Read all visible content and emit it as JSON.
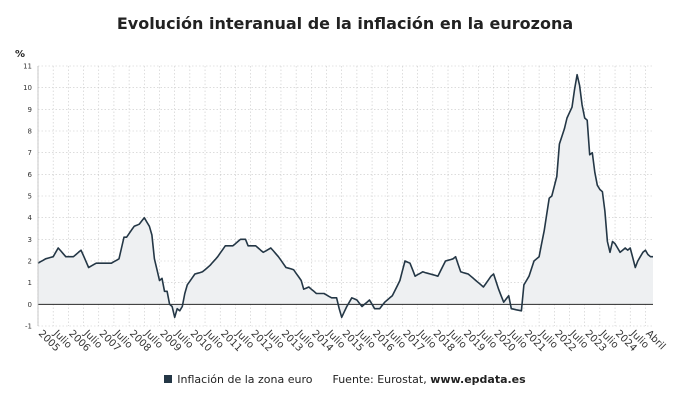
{
  "chart_data": {
    "type": "area",
    "title": "Evolución interanual de la inflación en la eurozona",
    "ylabel": "%",
    "ylim": [
      -1,
      11
    ],
    "yticks": [
      -1,
      0,
      1,
      2,
      3,
      4,
      5,
      6,
      7,
      8,
      9,
      10,
      11
    ],
    "grid": true,
    "xtick_labels": [
      "2005",
      "Julio",
      "2006",
      "Julio",
      "2007",
      "Julio",
      "2008",
      "Julio",
      "2009",
      "Julio",
      "2010",
      "Julio",
      "2011",
      "Julio",
      "2012",
      "Julio",
      "2013",
      "Julio",
      "2014",
      "Julio",
      "2015",
      "Julio",
      "2016",
      "Julio",
      "2017",
      "Julio",
      "2018",
      "Julio",
      "2019",
      "Julio",
      "2020",
      "Julio",
      "2021",
      "Julio",
      "2022",
      "Julio",
      "2023",
      "Julio",
      "2024",
      "Julio",
      "Abril"
    ],
    "series": [
      {
        "name": "Inflación de la zona euro",
        "color": "#243746",
        "fill": "#eef0f2",
        "x_start": "2005-01",
        "x_end": "2025-04",
        "anchors": [
          [
            "2005-01",
            1.9
          ],
          [
            "2005-04",
            2.1
          ],
          [
            "2005-07",
            2.2
          ],
          [
            "2005-09",
            2.6
          ],
          [
            "2005-12",
            2.2
          ],
          [
            "2006-03",
            2.2
          ],
          [
            "2006-06",
            2.5
          ],
          [
            "2006-09",
            1.7
          ],
          [
            "2006-12",
            1.9
          ],
          [
            "2007-03",
            1.9
          ],
          [
            "2007-06",
            1.9
          ],
          [
            "2007-09",
            2.1
          ],
          [
            "2007-11",
            3.1
          ],
          [
            "2007-12",
            3.1
          ],
          [
            "2008-03",
            3.6
          ],
          [
            "2008-05",
            3.7
          ],
          [
            "2008-07",
            4.0
          ],
          [
            "2008-09",
            3.6
          ],
          [
            "2008-10",
            3.2
          ],
          [
            "2008-11",
            2.1
          ],
          [
            "2008-12",
            1.6
          ],
          [
            "2009-01",
            1.1
          ],
          [
            "2009-02",
            1.2
          ],
          [
            "2009-03",
            0.6
          ],
          [
            "2009-04",
            0.6
          ],
          [
            "2009-05",
            0.0
          ],
          [
            "2009-06",
            -0.1
          ],
          [
            "2009-07",
            -0.6
          ],
          [
            "2009-08",
            -0.2
          ],
          [
            "2009-09",
            -0.3
          ],
          [
            "2009-10",
            -0.1
          ],
          [
            "2009-11",
            0.5
          ],
          [
            "2009-12",
            0.9
          ],
          [
            "2010-03",
            1.4
          ],
          [
            "2010-06",
            1.5
          ],
          [
            "2010-09",
            1.8
          ],
          [
            "2010-12",
            2.2
          ],
          [
            "2011-03",
            2.7
          ],
          [
            "2011-06",
            2.7
          ],
          [
            "2011-09",
            3.0
          ],
          [
            "2011-11",
            3.0
          ],
          [
            "2011-12",
            2.7
          ],
          [
            "2012-03",
            2.7
          ],
          [
            "2012-06",
            2.4
          ],
          [
            "2012-09",
            2.6
          ],
          [
            "2012-12",
            2.2
          ],
          [
            "2013-03",
            1.7
          ],
          [
            "2013-06",
            1.6
          ],
          [
            "2013-09",
            1.1
          ],
          [
            "2013-10",
            0.7
          ],
          [
            "2013-12",
            0.8
          ],
          [
            "2014-03",
            0.5
          ],
          [
            "2014-06",
            0.5
          ],
          [
            "2014-09",
            0.3
          ],
          [
            "2014-11",
            0.3
          ],
          [
            "2014-12",
            -0.2
          ],
          [
            "2015-01",
            -0.6
          ],
          [
            "2015-03",
            -0.1
          ],
          [
            "2015-05",
            0.3
          ],
          [
            "2015-07",
            0.2
          ],
          [
            "2015-09",
            -0.1
          ],
          [
            "2015-12",
            0.2
          ],
          [
            "2016-02",
            -0.2
          ],
          [
            "2016-04",
            -0.2
          ],
          [
            "2016-06",
            0.1
          ],
          [
            "2016-09",
            0.4
          ],
          [
            "2016-12",
            1.1
          ],
          [
            "2017-02",
            2.0
          ],
          [
            "2017-04",
            1.9
          ],
          [
            "2017-06",
            1.3
          ],
          [
            "2017-09",
            1.5
          ],
          [
            "2017-12",
            1.4
          ],
          [
            "2018-03",
            1.3
          ],
          [
            "2018-06",
            2.0
          ],
          [
            "2018-09",
            2.1
          ],
          [
            "2018-10",
            2.2
          ],
          [
            "2018-12",
            1.5
          ],
          [
            "2019-03",
            1.4
          ],
          [
            "2019-05",
            1.2
          ],
          [
            "2019-07",
            1.0
          ],
          [
            "2019-09",
            0.8
          ],
          [
            "2019-12",
            1.3
          ],
          [
            "2020-01",
            1.4
          ],
          [
            "2020-03",
            0.7
          ],
          [
            "2020-05",
            0.1
          ],
          [
            "2020-07",
            0.4
          ],
          [
            "2020-08",
            -0.2
          ],
          [
            "2020-12",
            -0.3
          ],
          [
            "2021-01",
            0.9
          ],
          [
            "2021-03",
            1.3
          ],
          [
            "2021-05",
            2.0
          ],
          [
            "2021-07",
            2.2
          ],
          [
            "2021-09",
            3.4
          ],
          [
            "2021-11",
            4.9
          ],
          [
            "2021-12",
            5.0
          ],
          [
            "2022-02",
            5.9
          ],
          [
            "2022-03",
            7.4
          ],
          [
            "2022-05",
            8.1
          ],
          [
            "2022-06",
            8.6
          ],
          [
            "2022-08",
            9.1
          ],
          [
            "2022-09",
            9.9
          ],
          [
            "2022-10",
            10.6
          ],
          [
            "2022-11",
            10.1
          ],
          [
            "2022-12",
            9.2
          ],
          [
            "2023-01",
            8.6
          ],
          [
            "2023-02",
            8.5
          ],
          [
            "2023-03",
            6.9
          ],
          [
            "2023-04",
            7.0
          ],
          [
            "2023-05",
            6.1
          ],
          [
            "2023-06",
            5.5
          ],
          [
            "2023-07",
            5.3
          ],
          [
            "2023-08",
            5.2
          ],
          [
            "2023-09",
            4.3
          ],
          [
            "2023-10",
            2.9
          ],
          [
            "2023-11",
            2.4
          ],
          [
            "2023-12",
            2.9
          ],
          [
            "2024-01",
            2.8
          ],
          [
            "2024-03",
            2.4
          ],
          [
            "2024-05",
            2.6
          ],
          [
            "2024-06",
            2.5
          ],
          [
            "2024-07",
            2.6
          ],
          [
            "2024-09",
            1.7
          ],
          [
            "2024-10",
            2.0
          ],
          [
            "2024-11",
            2.2
          ],
          [
            "2024-12",
            2.4
          ],
          [
            "2025-01",
            2.5
          ],
          [
            "2025-02",
            2.3
          ],
          [
            "2025-03",
            2.2
          ],
          [
            "2025-04",
            2.2
          ]
        ]
      }
    ]
  },
  "legend": {
    "series_label": "Inflación de la zona euro",
    "source_label": "Fuente: Eurostat,",
    "source_site": "www.epdata.es"
  }
}
